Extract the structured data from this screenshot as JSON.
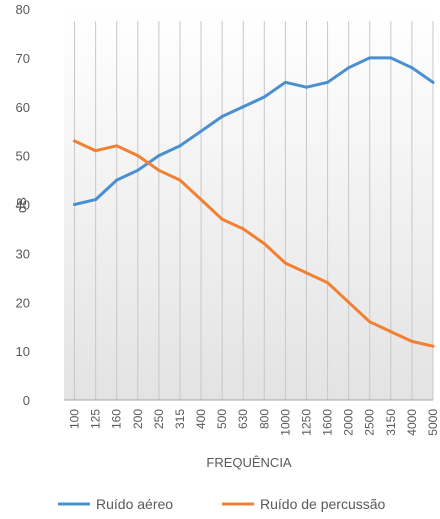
{
  "chart_data": {
    "type": "line",
    "xlabel": "FREQUÊNCIA",
    "ylabel": "dB",
    "ylim": [
      0,
      80
    ],
    "ytick_step": 10,
    "categories": [
      "100",
      "125",
      "160",
      "200",
      "250",
      "315",
      "400",
      "500",
      "630",
      "800",
      "1000",
      "1250",
      "1600",
      "2000",
      "2500",
      "3150",
      "4000",
      "5000"
    ],
    "series": [
      {
        "name": "Ruído aéreo",
        "color": "#4A90D0",
        "values": [
          40,
          41,
          45,
          47,
          50,
          52,
          55,
          58,
          60,
          62,
          65,
          64,
          65,
          68,
          70,
          70,
          68,
          65
        ]
      },
      {
        "name": "Ruído de percussão",
        "color": "#F28033",
        "values": [
          53,
          51,
          52,
          50,
          47,
          45,
          41,
          37,
          35,
          32,
          28,
          26,
          24,
          20,
          16,
          14,
          12,
          11
        ]
      }
    ],
    "grid": true,
    "background_gradient": true,
    "legend_position": "bottom"
  }
}
